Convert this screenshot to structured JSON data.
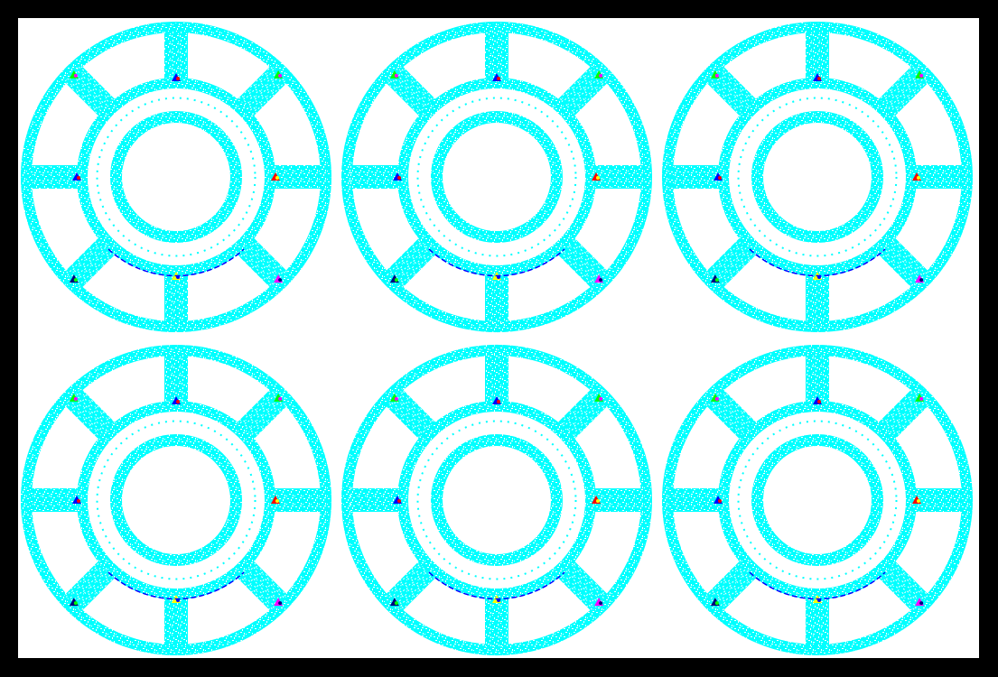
{
  "colors": {
    "frame": "#000000",
    "background": "#ffffff",
    "mesh": "#00ffff",
    "hotspots": [
      "#0000ff",
      "#00ff00",
      "#ff0000",
      "#ff00ff",
      "#ffff00",
      "#000080"
    ]
  },
  "grid": {
    "rows": 2,
    "cols": 3
  },
  "panels": [
    {
      "id": "panel-1"
    },
    {
      "id": "panel-2"
    },
    {
      "id": "panel-3"
    },
    {
      "id": "panel-4"
    },
    {
      "id": "panel-5"
    },
    {
      "id": "panel-6"
    }
  ]
}
